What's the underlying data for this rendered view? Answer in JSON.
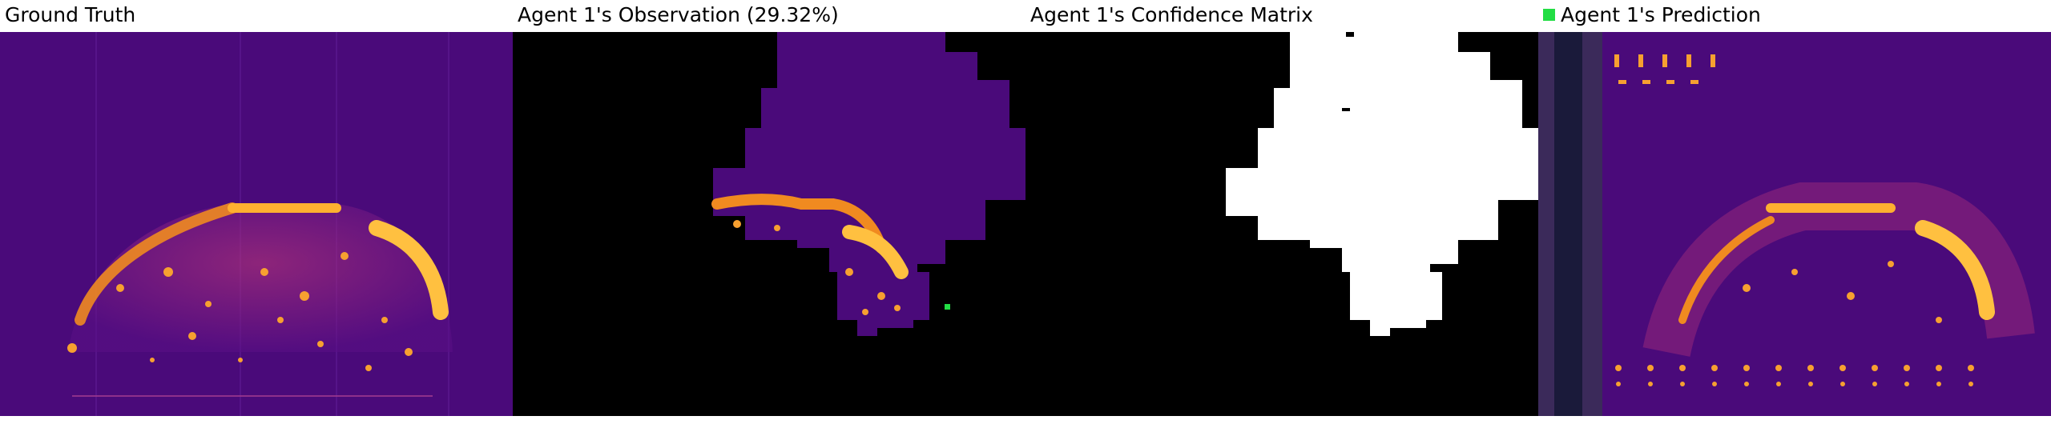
{
  "panels": [
    {
      "title": "Ground Truth"
    },
    {
      "title": "Agent 1's Observation (29.32%)"
    },
    {
      "title": "Agent 1's Confidence Matrix"
    },
    {
      "title": "Agent 1's Prediction"
    }
  ],
  "colors": {
    "background_purple": "#4a0a7a",
    "heat_orange": "#f08a20",
    "heat_yellow": "#ffd040",
    "agent_marker": "#22dd44",
    "mask_black": "#000000",
    "confidence_white": "#ffffff"
  }
}
